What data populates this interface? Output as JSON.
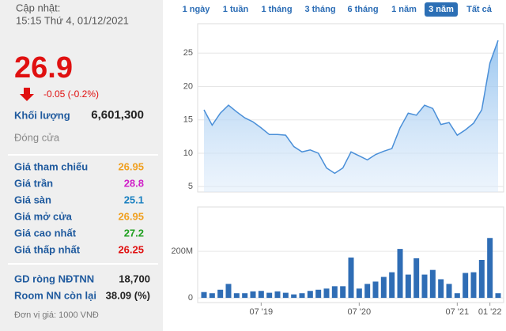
{
  "panel": {
    "update_label": "Cập nhật:",
    "update_time": "15:15 Thứ 4, 01/12/2021",
    "price": "26.9",
    "change": "-0.05 (-0.2%)",
    "volume_label": "Khối lượng",
    "volume": "6,601,300",
    "status": "Đóng cửa",
    "rows": [
      [
        "Giá tham chiếu",
        "26.95",
        "#f0a020"
      ],
      [
        "Giá trần",
        "28.8",
        "#d020c8"
      ],
      [
        "Giá sàn",
        "25.1",
        "#1a80c0"
      ],
      [
        "Giá mở cửa",
        "26.95",
        "#f0a020"
      ],
      [
        "Giá cao nhất",
        "27.2",
        "#20a020"
      ],
      [
        "Giá thấp nhất",
        "26.25",
        "#e01010"
      ]
    ],
    "foreign": [
      [
        "GD ròng NĐTNN",
        "18,700"
      ],
      [
        "Room NN còn lại",
        "38.09 (%)"
      ]
    ],
    "unit_note": "Đơn vị giá: 1000 VNĐ"
  },
  "tabs": [
    "1 ngày",
    "1 tuần",
    "1 tháng",
    "3 tháng",
    "6 tháng",
    "1 năm",
    "3 năm",
    "Tất cả"
  ],
  "selected_tab": 6,
  "chart_data": [
    {
      "type": "area",
      "color": "#4a8fd8",
      "values": [
        16.5,
        14.2,
        16,
        17.2,
        16.2,
        15.3,
        14.7,
        13.8,
        12.8,
        12.8,
        12.7,
        11,
        10.2,
        10.5,
        10,
        7.8,
        7,
        7.8,
        10.2,
        9.6,
        9,
        9.8,
        10.3,
        10.7,
        13.8,
        16,
        15.7,
        17.2,
        16.7,
        14.3,
        14.6,
        12.7,
        13.5,
        14.5,
        16.5,
        23.5,
        26.9
      ],
      "ylim": [
        4.2,
        29.4
      ],
      "yticks": [
        5,
        10,
        15,
        20,
        25
      ],
      "grid": true
    },
    {
      "type": "bar",
      "color": "#2f6db5",
      "categories": [
        null,
        null,
        null,
        null,
        null,
        null,
        null,
        "07 '19",
        null,
        null,
        null,
        null,
        null,
        null,
        null,
        null,
        null,
        null,
        null,
        "07 '20",
        null,
        null,
        null,
        null,
        null,
        null,
        null,
        null,
        null,
        null,
        null,
        "07 '21",
        null,
        null,
        null,
        "01 '22",
        null
      ],
      "values": [
        25000000,
        20000000,
        35000000,
        60000000,
        20000000,
        20000000,
        28000000,
        30000000,
        22000000,
        28000000,
        22000000,
        15000000,
        20000000,
        30000000,
        35000000,
        40000000,
        50000000,
        50000000,
        173000000,
        40000000,
        60000000,
        70000000,
        90000000,
        110000000,
        210000000,
        100000000,
        170000000,
        100000000,
        120000000,
        80000000,
        60000000,
        20000000,
        107000000,
        110000000,
        163000000,
        257000000,
        20000000
      ],
      "ylim": [
        -20000000,
        390000000
      ],
      "yticks": [
        0,
        {
          "value": 200000000,
          "label": "200M"
        }
      ],
      "grid": true
    }
  ]
}
